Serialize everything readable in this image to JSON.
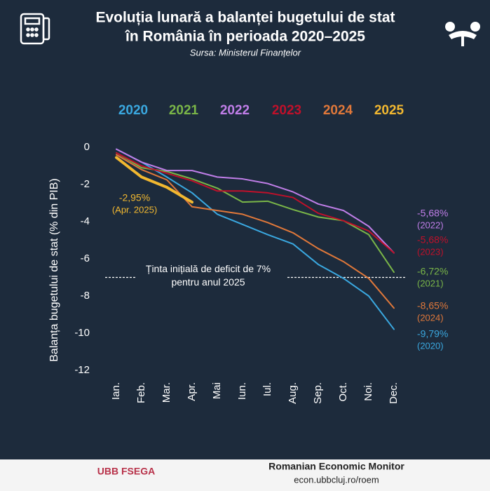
{
  "chart_data": {
    "type": "line",
    "title": [
      "Evoluția lunară a balanței bugetului de stat",
      "în România în perioada 2020–2025"
    ],
    "subtitle": "Sursa: Ministerul Finanțelor",
    "y_label": "Balanța bugetului de stat (% din PIB)",
    "categories": [
      "Ian.",
      "Feb.",
      "Mar.",
      "Apr.",
      "Mai",
      "Iun.",
      "Iul.",
      "Aug.",
      "Sep.",
      "Oct.",
      "Noi.",
      "Dec."
    ],
    "ylim": [
      -12,
      0
    ],
    "yticks": [
      0,
      -2,
      -4,
      -6,
      -8,
      -10,
      -12
    ],
    "target": {
      "value": -7,
      "label": [
        "Ținta inițială de deficit de 7%",
        "pentru anul 2025"
      ]
    },
    "series": [
      {
        "name": "2020",
        "color": "#3aa8e0",
        "values": [
          -0.1,
          -0.8,
          -1.6,
          -2.45,
          -3.6,
          -4.15,
          -4.7,
          -5.2,
          -6.3,
          -7.05,
          -8.0,
          -9.79
        ],
        "value_labels": [
          null,
          null,
          null,
          null,
          null,
          null,
          null,
          null,
          null,
          null,
          null,
          "-9,79%"
        ],
        "label_note": "(2020)"
      },
      {
        "name": "2021",
        "color": "#7ab648",
        "values": [
          -0.3,
          -1.1,
          -1.3,
          -1.7,
          -2.2,
          -2.95,
          -2.9,
          -3.35,
          -3.75,
          -3.95,
          -4.7,
          -6.72
        ],
        "value_labels": [
          null,
          null,
          null,
          null,
          null,
          null,
          null,
          null,
          null,
          null,
          null,
          "-6,72%"
        ],
        "label_note": "(2021)"
      },
      {
        "name": "2022",
        "color": "#c07ee8",
        "values": [
          -0.1,
          -0.8,
          -1.25,
          -1.25,
          -1.6,
          -1.7,
          -1.95,
          -2.4,
          -3.05,
          -3.4,
          -4.25,
          -5.68
        ],
        "value_labels": [
          null,
          null,
          null,
          null,
          null,
          null,
          null,
          null,
          null,
          null,
          null,
          "-5,68%"
        ],
        "label_note": "(2022)"
      },
      {
        "name": "2023",
        "color": "#c0102a",
        "values": [
          -0.3,
          -1.0,
          -1.4,
          -1.8,
          -2.35,
          -2.35,
          -2.45,
          -2.7,
          -3.55,
          -3.95,
          -4.5,
          -5.68
        ],
        "value_labels": [
          null,
          null,
          null,
          null,
          null,
          null,
          null,
          null,
          null,
          null,
          null,
          "-5,68%"
        ],
        "label_note": "(2023)"
      },
      {
        "name": "2024",
        "color": "#e0783a",
        "values": [
          -0.4,
          -1.2,
          -1.75,
          -3.2,
          -3.4,
          -3.6,
          -4.05,
          -4.6,
          -5.45,
          -6.15,
          -7.05,
          -8.65
        ],
        "value_labels": [
          null,
          null,
          null,
          null,
          null,
          null,
          null,
          null,
          null,
          null,
          null,
          "-8,65%"
        ],
        "label_note": "(2024)"
      },
      {
        "name": "2025",
        "color": "#f2b830",
        "values": [
          -0.55,
          -1.6,
          -2.15,
          -2.95,
          null,
          null,
          null,
          null,
          null,
          null,
          null,
          null
        ],
        "value_labels": [
          null,
          null,
          null,
          "-2,95%",
          null,
          null,
          null,
          null,
          null,
          null,
          null,
          null
        ],
        "label_note": "(Apr. 2025)"
      }
    ],
    "footer": {
      "brand": "UBB FSEGA",
      "title": "Romanian Economic Monitor",
      "url": "econ.ubbcluj.ro/roem"
    }
  }
}
